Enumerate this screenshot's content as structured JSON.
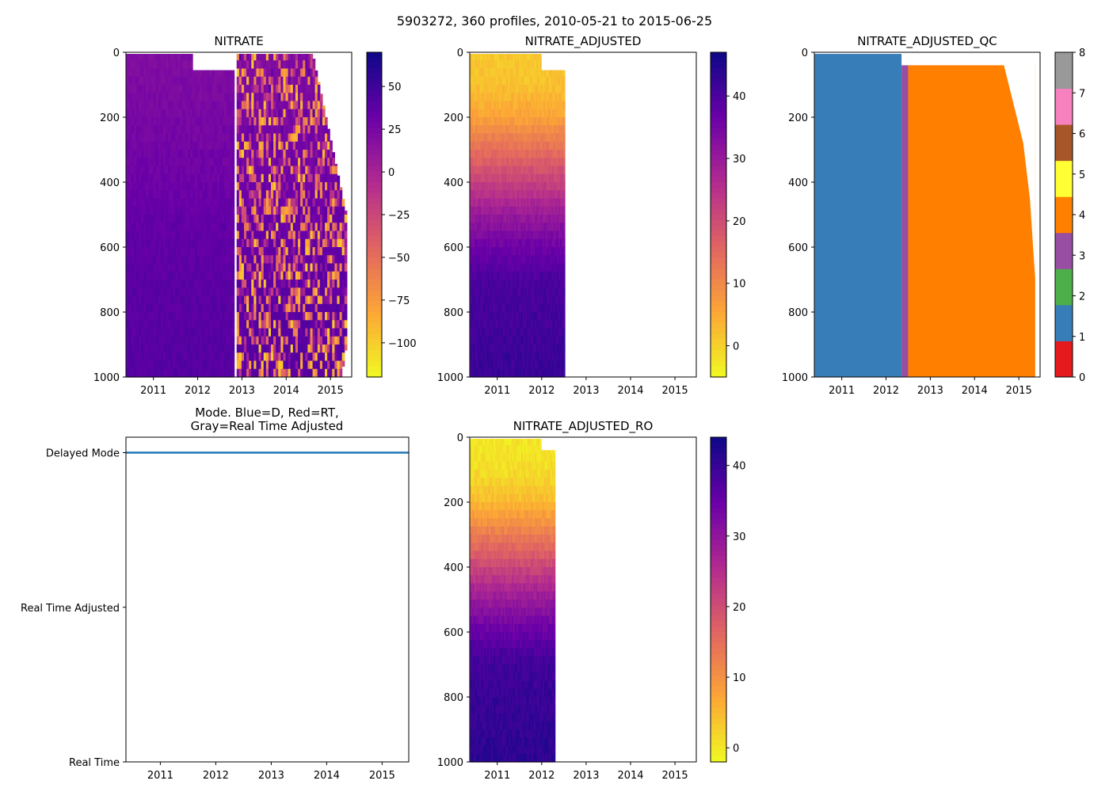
{
  "figure_title": "5903272, 360 profiles, 2010-05-21 to 2015-06-25",
  "colors": {
    "plasma_stops": [
      "#0d0887",
      "#6a00a8",
      "#b12a90",
      "#e16462",
      "#fca636",
      "#f0f921"
    ],
    "qc_colors": [
      "#e41a1c",
      "#377eb8",
      "#4daf4a",
      "#984ea3",
      "#ff7f00",
      "#ffff33",
      "#a65628",
      "#f781bf",
      "#999999"
    ],
    "mode_line": "#1f77b4"
  },
  "chart_data": [
    {
      "id": "nitrate",
      "type": "heatmap",
      "title": "NITRATE",
      "x_ticks": [
        "2011",
        "2012",
        "2013",
        "2014",
        "2015"
      ],
      "x_range": [
        2010.38,
        2015.48
      ],
      "y_ticks": [
        "0",
        "200",
        "400",
        "600",
        "800",
        "1000"
      ],
      "y_range": [
        0,
        1000
      ],
      "y_inverted": true,
      "colormap": "plasma_r",
      "color_range": [
        -120,
        70
      ],
      "colorbar_ticks": [
        "50",
        "25",
        "0",
        "−25",
        "−50",
        "−75",
        "−100"
      ],
      "colorbar_values": [
        50,
        25,
        0,
        -25,
        -50,
        -75,
        -100
      ],
      "data_extent": {
        "x_start": 2010.39,
        "x_gap": 2012.85,
        "x_end": 2015.37
      },
      "typical_values_by_depth": {
        "depth": [
          0,
          200,
          400,
          500,
          700,
          1000
        ],
        "value": [
          20,
          25,
          30,
          34,
          38,
          40
        ]
      },
      "noisy_after": 2012.85,
      "noisy_range": [
        -100,
        40
      ]
    },
    {
      "id": "nitrate_adjusted",
      "type": "heatmap",
      "title": "NITRATE_ADJUSTED",
      "x_ticks": [
        "2011",
        "2012",
        "2013",
        "2014",
        "2015"
      ],
      "x_range": [
        2010.38,
        2015.48
      ],
      "y_ticks": [
        "0",
        "200",
        "400",
        "600",
        "800",
        "1000"
      ],
      "y_range": [
        0,
        1000
      ],
      "y_inverted": true,
      "colormap": "plasma_r",
      "color_range": [
        -5,
        47
      ],
      "colorbar_ticks": [
        "40",
        "30",
        "20",
        "10",
        "0"
      ],
      "colorbar_values": [
        40,
        30,
        20,
        10,
        0
      ],
      "data_extent": {
        "x_start": 2010.39,
        "x_end": 2012.52
      },
      "typical_values_by_depth": {
        "depth": [
          0,
          100,
          200,
          300,
          400,
          500,
          600,
          700,
          1000
        ],
        "value": [
          1,
          2,
          6,
          14,
          22,
          30,
          36,
          40,
          42
        ]
      }
    },
    {
      "id": "nitrate_adjusted_qc",
      "type": "heatmap",
      "title": "NITRATE_ADJUSTED_QC",
      "x_ticks": [
        "2011",
        "2012",
        "2013",
        "2014",
        "2015"
      ],
      "x_range": [
        2010.38,
        2015.48
      ],
      "y_ticks": [
        "0",
        "200",
        "400",
        "600",
        "800",
        "1000"
      ],
      "y_range": [
        0,
        1000
      ],
      "y_inverted": true,
      "colormap": "qualitative",
      "color_range": [
        0,
        8
      ],
      "colorbar_ticks": [
        "8",
        "7",
        "6",
        "5",
        "4",
        "3",
        "2",
        "1",
        "0"
      ],
      "colorbar_values": [
        8,
        7,
        6,
        5,
        4,
        3,
        2,
        1,
        0
      ],
      "segments": [
        {
          "from": 2010.39,
          "to": 2012.35,
          "flag": 1
        },
        {
          "from": 2012.35,
          "to": 2012.5,
          "flag": 3
        },
        {
          "from": 2012.5,
          "to": 2015.37,
          "flag": 4
        }
      ]
    },
    {
      "id": "mode",
      "type": "line",
      "title": "Mode. Blue=D, Red=RT,",
      "title_line2": "Gray=Real Time Adjusted",
      "x_ticks": [
        "2011",
        "2012",
        "2013",
        "2014",
        "2015"
      ],
      "x_range": [
        2010.38,
        2015.48
      ],
      "y_categories": [
        "Delayed Mode",
        "Real Time Adjusted",
        "Real Time"
      ],
      "y_positions": [
        2,
        1,
        0
      ],
      "y_range": [
        0,
        2.1
      ],
      "series": [
        {
          "name": "Delayed Mode",
          "x": [
            2010.38,
            2015.48
          ],
          "y": [
            2,
            2
          ]
        }
      ]
    },
    {
      "id": "nitrate_adjusted_ro",
      "type": "heatmap",
      "title": "NITRATE_ADJUSTED_RO",
      "x_ticks": [
        "2011",
        "2012",
        "2013",
        "2014",
        "2015"
      ],
      "x_range": [
        2010.38,
        2015.48
      ],
      "y_ticks": [
        "0",
        "200",
        "400",
        "600",
        "800",
        "1000"
      ],
      "y_range": [
        0,
        1000
      ],
      "y_inverted": true,
      "colormap": "plasma_r",
      "color_range": [
        -2,
        44
      ],
      "colorbar_ticks": [
        "40",
        "30",
        "20",
        "10",
        "0"
      ],
      "colorbar_values": [
        40,
        30,
        20,
        10,
        0
      ],
      "data_extent": {
        "x_start": 2010.39,
        "x_end": 2012.3
      },
      "typical_values_by_depth": {
        "depth": [
          0,
          100,
          200,
          300,
          400,
          500,
          600,
          700,
          1000
        ],
        "value": [
          0,
          1,
          5,
          13,
          21,
          29,
          35,
          39,
          41
        ]
      }
    }
  ]
}
